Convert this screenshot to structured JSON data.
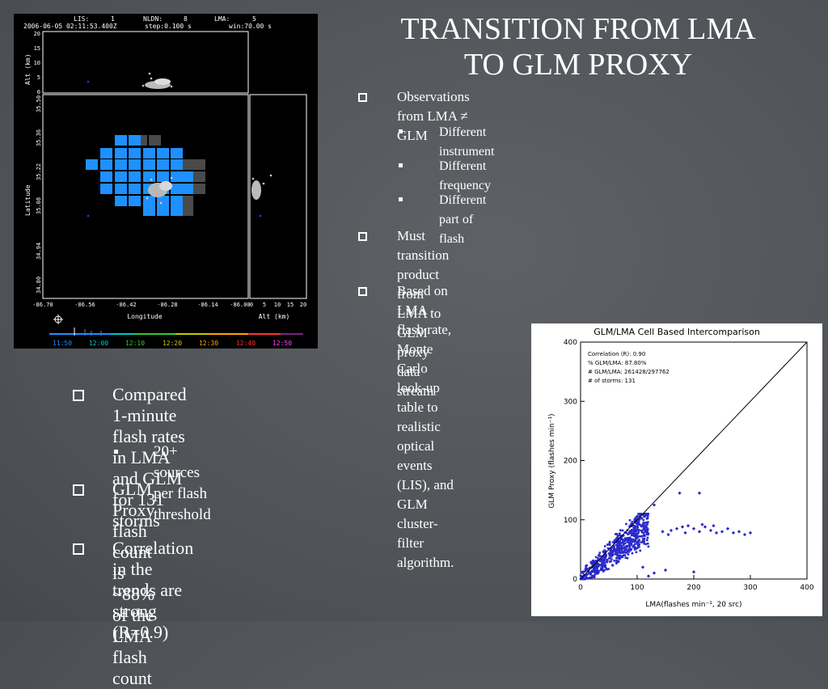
{
  "slide": {
    "title_line1": "TRANSITION FROM LMA",
    "title_line2": "TO GLM PROXY",
    "right_bullets": [
      {
        "text": "Observations from LMA ≠ GLM"
      },
      {
        "text": "Different instrument"
      },
      {
        "text": "Different frequency"
      },
      {
        "text": "Different part of flash"
      },
      {
        "text_line1": "Must transition product from LMA to GLM proxy data",
        "text_line2": "stream"
      },
      {
        "text_line1": "Based on LMA flash rate, Monte Carlo look-up table to",
        "text_line2": "realistic optical events (LIS), and GLM cluster-filter",
        "text_line3": "algorithm."
      }
    ],
    "left_bullets": [
      {
        "text_line1": "Compared 1-minute flash rates in LMA",
        "text_line2": "and GLM for 131 storms"
      },
      {
        "text": "20+ sources per flash threshold"
      },
      {
        "text_line1": "GLM Proxy flash count is ~88% of the",
        "text_line2": "LMA flash count"
      },
      {
        "text_line1": "Correlation in the trends are strong",
        "text_line2": "(R=0.9)"
      }
    ]
  },
  "radar": {
    "header_lis": "LIS:",
    "header_lis_val": "1",
    "header_nldn": "NLDN:",
    "header_nldn_val": "8",
    "header_lma": "LMA:",
    "header_lma_val": "5",
    "header_time": "2006-06-05 02:11:53.400Z",
    "header_step": "step:0.100 s",
    "header_win": "win:70.00 s",
    "alt_label": "Alt (km)",
    "alt_ticks": [
      "20",
      "15",
      "10",
      "5",
      "0"
    ],
    "lat_label": "Latitude",
    "lat_ticks": [
      "35.50",
      "35.36",
      "35.22",
      "35.08",
      "34.94",
      "34.80"
    ],
    "lon_ticks": [
      "-86.70",
      "-86.56",
      "-86.42",
      "-86.28",
      "-86.14",
      "-86.00"
    ],
    "lon_label": "Longitude",
    "alt_x_ticks": [
      "0",
      "5",
      "10",
      "15",
      "20"
    ],
    "alt_x_label": "Alt (km)",
    "time_ticks": [
      "11:50",
      "12:00",
      "12:10",
      "12:20",
      "12:30",
      "12:40",
      "12:50"
    ],
    "time_colors": [
      "#1e90ff",
      "#00c8c8",
      "#32cd32",
      "#c8c800",
      "#ffa500",
      "#ff3030",
      "#ff40ff"
    ],
    "crosshair_icon": "crosshair-icon",
    "cell_blue": "#1e90ff",
    "cell_gray": "#4a4a4a"
  },
  "chart_data": {
    "type": "scatter",
    "title": "GLM/LMA Cell Based Intercomparison",
    "xlabel": "LMA(flashes min⁻¹, 20 src)",
    "ylabel": "GLM Proxy (flashes min⁻¹)",
    "xlim": [
      0,
      400
    ],
    "ylim": [
      0,
      400
    ],
    "xticks": [
      "0",
      "100",
      "200",
      "300",
      "400"
    ],
    "yticks": [
      "0",
      "100",
      "200",
      "300",
      "400"
    ],
    "annotations": [
      "Correlation (R): 0.90",
      "% GLM/LMA: 87.80%",
      "# GLM/LMA: 261428/297762",
      "# of storms: 131"
    ],
    "one_to_one_line": true,
    "point_color": "#2a2acc",
    "outlier_points": [
      {
        "x": 130,
        "y": 125
      },
      {
        "x": 175,
        "y": 145
      },
      {
        "x": 210,
        "y": 145
      },
      {
        "x": 100,
        "y": 105
      },
      {
        "x": 145,
        "y": 80
      },
      {
        "x": 160,
        "y": 82
      },
      {
        "x": 170,
        "y": 85
      },
      {
        "x": 180,
        "y": 88
      },
      {
        "x": 190,
        "y": 90
      },
      {
        "x": 200,
        "y": 85
      },
      {
        "x": 210,
        "y": 80
      },
      {
        "x": 220,
        "y": 88
      },
      {
        "x": 230,
        "y": 82
      },
      {
        "x": 240,
        "y": 78
      },
      {
        "x": 250,
        "y": 80
      },
      {
        "x": 260,
        "y": 85
      },
      {
        "x": 270,
        "y": 78
      },
      {
        "x": 280,
        "y": 80
      },
      {
        "x": 290,
        "y": 75
      },
      {
        "x": 300,
        "y": 78
      },
      {
        "x": 155,
        "y": 75
      },
      {
        "x": 185,
        "y": 78
      },
      {
        "x": 215,
        "y": 92
      },
      {
        "x": 235,
        "y": 90
      },
      {
        "x": 130,
        "y": 10
      },
      {
        "x": 150,
        "y": 15
      },
      {
        "x": 120,
        "y": 5
      },
      {
        "x": 200,
        "y": 12
      },
      {
        "x": 110,
        "y": 20
      }
    ]
  }
}
